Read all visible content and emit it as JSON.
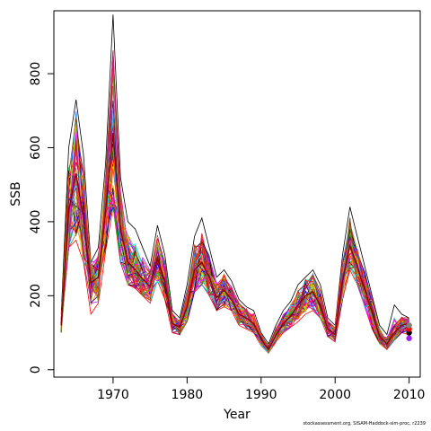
{
  "chart_data": {
    "type": "line",
    "xlabel": "Year",
    "ylabel": "SSB",
    "xlim": [
      1962,
      2011.5
    ],
    "ylim": [
      -20,
      970
    ],
    "x_ticks": [
      1970,
      1980,
      1990,
      2000,
      2010
    ],
    "y_ticks": [
      0,
      200,
      400,
      600,
      800
    ],
    "grid": false,
    "legend": "none",
    "n_series_drawn": 60,
    "years": [
      1963,
      1964,
      1965,
      1966,
      1967,
      1968,
      1969,
      1970,
      1971,
      1972,
      1973,
      1974,
      1975,
      1976,
      1977,
      1978,
      1979,
      1980,
      1981,
      1982,
      1983,
      1984,
      1985,
      1986,
      1987,
      1988,
      1989,
      1990,
      1991,
      1992,
      1993,
      1994,
      1995,
      1996,
      1997,
      1998,
      1999,
      2000,
      2001,
      2002,
      2003,
      2004,
      2005,
      2006,
      2007,
      2008,
      2009,
      2010
    ],
    "series": [
      {
        "values": [
          120,
          430,
          530,
          410,
          235,
          250,
          430,
          640,
          380,
          290,
          270,
          245,
          225,
          300,
          240,
          125,
          115,
          170,
          270,
          290,
          250,
          195,
          215,
          190,
          150,
          140,
          125,
          82,
          55,
          92,
          125,
          145,
          175,
          200,
          210,
          175,
          110,
          95,
          240,
          335,
          280,
          215,
          155,
          90,
          70,
          100,
          120,
          125
        ]
      }
    ],
    "envelope_min": [
      100,
      330,
      350,
      290,
      150,
      180,
      320,
      440,
      290,
      230,
      220,
      200,
      180,
      240,
      190,
      100,
      95,
      130,
      210,
      230,
      200,
      160,
      170,
      160,
      120,
      110,
      100,
      65,
      45,
      75,
      100,
      115,
      130,
      150,
      160,
      140,
      90,
      75,
      190,
      270,
      230,
      170,
      110,
      70,
      55,
      80,
      100,
      95
    ],
    "envelope_max": [
      150,
      600,
      730,
      580,
      290,
      330,
      560,
      960,
      520,
      400,
      380,
      330,
      280,
      390,
      310,
      160,
      140,
      230,
      360,
      410,
      330,
      250,
      270,
      240,
      190,
      170,
      160,
      100,
      70,
      120,
      160,
      185,
      230,
      250,
      270,
      230,
      140,
      120,
      310,
      440,
      360,
      280,
      200,
      120,
      95,
      175,
      150,
      140
    ],
    "final_points": [
      85,
      100,
      110,
      120
    ],
    "palette": [
      "#000000",
      "#ff0000",
      "#00cd00",
      "#0000ff",
      "#00ffff",
      "#ff00ff",
      "#ffd700",
      "#a020f0",
      "#ff8c00",
      "#8b4513",
      "#ff1493",
      "#1e90ff",
      "#9acd32",
      "#b22222",
      "#4b0082",
      "#808080",
      "#dc143c",
      "#ff4500",
      "#c71585",
      "#6b8e23"
    ]
  },
  "footnote": "stockassessment.org, SISAM-Haddock-sim-proc, r2239"
}
